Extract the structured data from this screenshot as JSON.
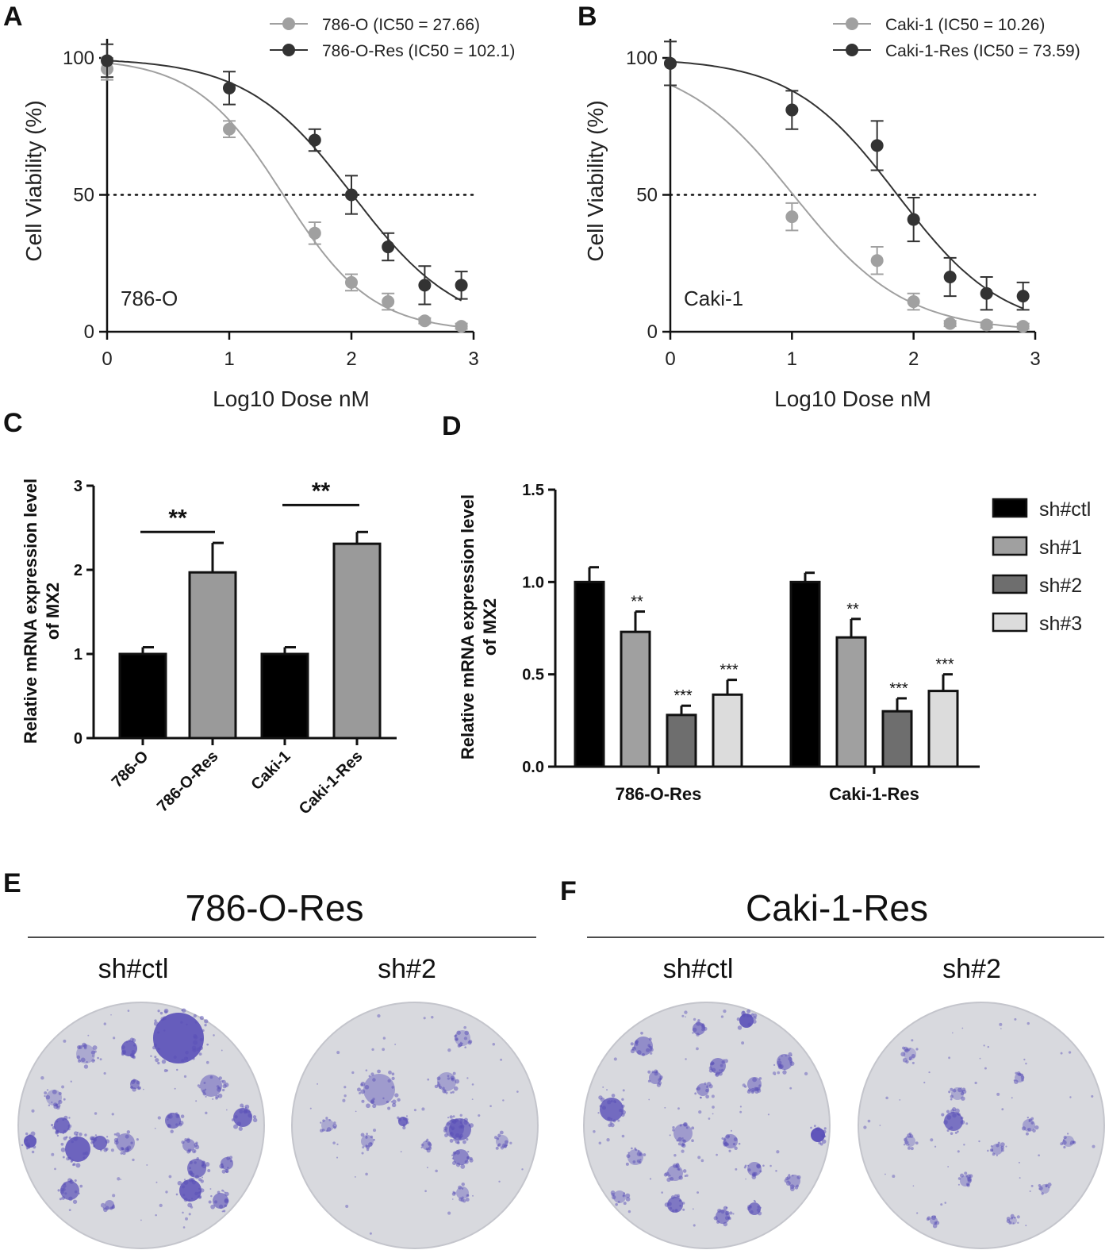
{
  "panels": {
    "A": "A",
    "B": "B",
    "C": "C",
    "D": "D",
    "E": "E",
    "F": "F"
  },
  "chart_data": [
    {
      "id": "A",
      "type": "line",
      "panel_label": "A",
      "inplot_label": "786-O",
      "xlabel": "Log10 Dose nM",
      "ylabel": "Cell Viability (%)",
      "xlim": [
        0,
        3
      ],
      "ylim": [
        0,
        100
      ],
      "xticks": [
        "0",
        "1",
        "2",
        "3"
      ],
      "yticks": [
        "0",
        "50",
        "100"
      ],
      "reference_line": 50,
      "series": [
        {
          "name": "786-O (IC50 = 27.66)",
          "color": "#a0a0a0",
          "log_ic50": 1.442,
          "top": 100,
          "bottom": 0,
          "hill": 1.2,
          "x": [
            0,
            1,
            1.7,
            2,
            2.3,
            2.6,
            2.9
          ],
          "y": [
            96,
            74,
            36,
            18,
            11,
            4,
            2
          ],
          "err": [
            4,
            3,
            4,
            3,
            3,
            1,
            1
          ]
        },
        {
          "name": "786-O-Res (IC50 = 102.1)",
          "color": "#333333",
          "log_ic50": 2.009,
          "top": 100,
          "bottom": 0,
          "hill": 1.0,
          "x": [
            0,
            1,
            1.7,
            2,
            2.3,
            2.6,
            2.9
          ],
          "y": [
            99,
            89,
            70,
            50,
            31,
            17,
            17
          ],
          "err": [
            6,
            6,
            4,
            7,
            5,
            7,
            5
          ]
        }
      ]
    },
    {
      "id": "B",
      "type": "line",
      "panel_label": "B",
      "inplot_label": "Caki-1",
      "xlabel": "Log10 Dose nM",
      "ylabel": "Cell Viability (%)",
      "xlim": [
        0,
        3
      ],
      "ylim": [
        0,
        100
      ],
      "xticks": [
        "0",
        "1",
        "2",
        "3"
      ],
      "yticks": [
        "0",
        "50",
        "100"
      ],
      "reference_line": 50,
      "series": [
        {
          "name": "Caki-1 (IC50 = 10.26)",
          "color": "#a0a0a0",
          "log_ic50": 1.011,
          "top": 100,
          "bottom": 0,
          "hill": 0.95,
          "x": [
            0,
            1,
            1.7,
            2,
            2.3,
            2.6,
            2.9
          ],
          "y": [
            98,
            42,
            26,
            11,
            3,
            2.5,
            2
          ],
          "err": [
            8,
            5,
            5,
            3,
            1,
            1,
            1
          ]
        },
        {
          "name": "Caki-1-Res (IC50 = 73.59)",
          "color": "#333333",
          "log_ic50": 1.867,
          "top": 100,
          "bottom": 0,
          "hill": 1.0,
          "x": [
            0,
            1,
            1.7,
            2,
            2.3,
            2.6,
            2.9
          ],
          "y": [
            98,
            81,
            68,
            41,
            20,
            14,
            13
          ],
          "err": [
            8,
            7,
            9,
            8,
            7,
            6,
            5
          ]
        }
      ]
    },
    {
      "id": "C",
      "type": "bar",
      "panel_label": "C",
      "ylabel_lines": [
        "Relative mRNA expression level",
        "of MX2"
      ],
      "ylim": [
        0,
        3
      ],
      "yticks": [
        "0",
        "1",
        "2",
        "3"
      ],
      "categories": [
        "786-O",
        "786-O-Res",
        "Caki-1",
        "Caki-1-Res"
      ],
      "values": [
        1.0,
        1.97,
        1.0,
        2.31
      ],
      "err": [
        0.08,
        0.35,
        0.08,
        0.14
      ],
      "colors": [
        "#000000",
        "#9a9a9a",
        "#000000",
        "#9a9a9a"
      ],
      "significance": [
        {
          "from": 0,
          "to": 1,
          "label": "**",
          "level": 2.45
        },
        {
          "from": 2,
          "to": 3,
          "label": "**",
          "level": 2.77
        }
      ]
    },
    {
      "id": "D",
      "type": "bar",
      "panel_label": "D",
      "ylabel_lines": [
        "Relative mRNA expression level",
        "of MX2"
      ],
      "ylim": [
        0,
        1.5
      ],
      "yticks": [
        "0.0",
        "0.5",
        "1.0",
        "1.5"
      ],
      "categories": [
        "786-O-Res",
        "Caki-1-Res"
      ],
      "series": [
        {
          "name": "sh#ctl",
          "color": "#000000",
          "values": [
            1.0,
            1.0
          ],
          "err": [
            0.08,
            0.05
          ],
          "sig": [
            "",
            ""
          ]
        },
        {
          "name": "sh#1",
          "color": "#a0a0a0",
          "values": [
            0.73,
            0.7
          ],
          "err": [
            0.11,
            0.1
          ],
          "sig": [
            "**",
            "**"
          ]
        },
        {
          "name": "sh#2",
          "color": "#6e6e6e",
          "values": [
            0.28,
            0.3
          ],
          "err": [
            0.05,
            0.07
          ],
          "sig": [
            "***",
            "***"
          ]
        },
        {
          "name": "sh#3",
          "color": "#dcdcdc",
          "values": [
            0.39,
            0.41
          ],
          "err": [
            0.08,
            0.09
          ],
          "sig": [
            "***",
            "***"
          ]
        }
      ]
    }
  ],
  "colony": {
    "E": {
      "panel_label": "E",
      "title": "786-O-Res",
      "plates": [
        "sh#ctl",
        "sh#2"
      ]
    },
    "F": {
      "panel_label": "F",
      "title": "Caki-1-Res",
      "plates": [
        "sh#ctl",
        "sh#2"
      ]
    }
  },
  "colors": {
    "plate": "#d8d9de",
    "stain": "#5a4fb8"
  }
}
